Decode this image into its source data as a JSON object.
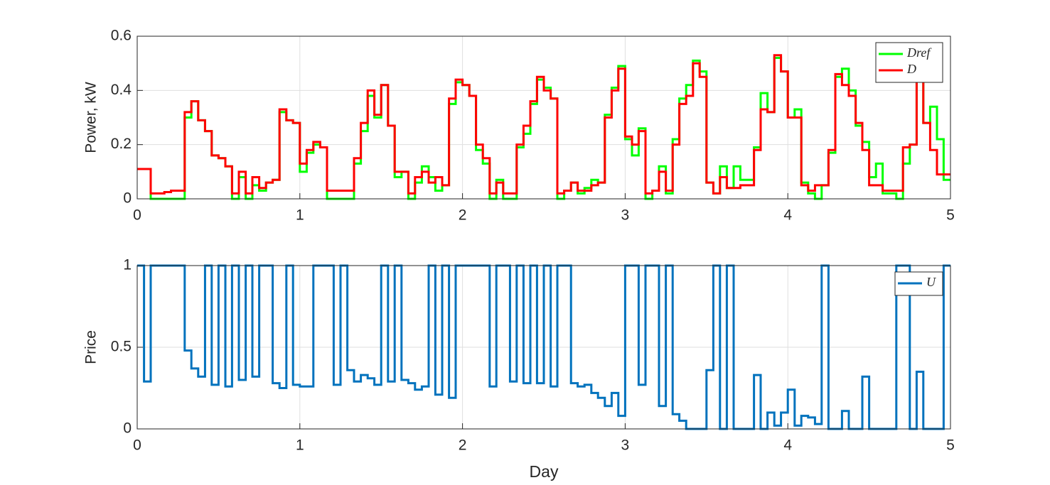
{
  "chart_data": [
    {
      "type": "stairs",
      "ylabel": "Power, kW",
      "xlim": [
        0,
        5
      ],
      "xticks": [
        0,
        1,
        2,
        3,
        4,
        5
      ],
      "ylim": [
        0,
        0.6
      ],
      "yticks": [
        0,
        0.2,
        0.4,
        0.6
      ],
      "grid": true,
      "legend": "northeast",
      "x": [
        0,
        0.042,
        0.083,
        0.125,
        0.167,
        0.208,
        0.25,
        0.292,
        0.333,
        0.375,
        0.417,
        0.458,
        0.5,
        0.542,
        0.583,
        0.625,
        0.667,
        0.708,
        0.75,
        0.792,
        0.833,
        0.875,
        0.917,
        0.958,
        1,
        1.042,
        1.083,
        1.125,
        1.167,
        1.208,
        1.25,
        1.292,
        1.333,
        1.375,
        1.417,
        1.458,
        1.5,
        1.542,
        1.583,
        1.625,
        1.667,
        1.708,
        1.75,
        1.792,
        1.833,
        1.875,
        1.917,
        1.958,
        2,
        2.042,
        2.083,
        2.125,
        2.167,
        2.208,
        2.25,
        2.292,
        2.333,
        2.375,
        2.417,
        2.458,
        2.5,
        2.542,
        2.583,
        2.625,
        2.667,
        2.708,
        2.75,
        2.792,
        2.833,
        2.875,
        2.917,
        2.958,
        3,
        3.042,
        3.083,
        3.125,
        3.167,
        3.208,
        3.25,
        3.292,
        3.333,
        3.375,
        3.417,
        3.458,
        3.5,
        3.542,
        3.583,
        3.625,
        3.667,
        3.708,
        3.75,
        3.792,
        3.833,
        3.875,
        3.917,
        3.958,
        4,
        4.042,
        4.083,
        4.125,
        4.167,
        4.208,
        4.25,
        4.292,
        4.333,
        4.375,
        4.417,
        4.458,
        4.5,
        4.542,
        4.583,
        4.625,
        4.667,
        4.708,
        4.75,
        4.792,
        4.833,
        4.875,
        4.917,
        4.958
      ],
      "series": [
        {
          "name": "Dref",
          "color": "#00ff00",
          "values": [
            0.11,
            0.11,
            0,
            0,
            0,
            0,
            0,
            0.3,
            0.36,
            0.29,
            0.25,
            0.16,
            0.15,
            0.12,
            0,
            0.08,
            0,
            0.05,
            0.03,
            0.06,
            0.07,
            0.32,
            0.29,
            0.28,
            0.1,
            0.17,
            0.2,
            0.19,
            0,
            0,
            0,
            0,
            0.13,
            0.25,
            0.38,
            0.3,
            0.42,
            0.27,
            0.08,
            0.1,
            0,
            0.06,
            0.12,
            0.08,
            0.03,
            0.05,
            0.35,
            0.43,
            0.42,
            0.38,
            0.18,
            0.13,
            0,
            0.07,
            0,
            0,
            0.19,
            0.24,
            0.35,
            0.44,
            0.41,
            0.37,
            0,
            0.03,
            0.06,
            0.02,
            0.04,
            0.07,
            0.06,
            0.31,
            0.41,
            0.49,
            0.22,
            0.16,
            0.26,
            0,
            0.03,
            0.12,
            0.02,
            0.22,
            0.37,
            0.42,
            0.51,
            0.47,
            0.06,
            0.02,
            0.12,
            0.04,
            0.12,
            0.07,
            0.07,
            0.19,
            0.39,
            0.32,
            0.52,
            0.47,
            0.3,
            0.33,
            0.06,
            0.02,
            0,
            0.05,
            0.17,
            0.45,
            0.48,
            0.4,
            0.27,
            0.21,
            0.08,
            0.13,
            0.02,
            0.02,
            0,
            0.13,
            0.2,
            0.57,
            0.28,
            0.34,
            0.22,
            0.07
          ]
        },
        {
          "name": "D",
          "color": "#ff0000",
          "values": [
            0.11,
            0.11,
            0.02,
            0.02,
            0.025,
            0.03,
            0.03,
            0.32,
            0.36,
            0.29,
            0.25,
            0.16,
            0.15,
            0.12,
            0.02,
            0.1,
            0.02,
            0.08,
            0.04,
            0.06,
            0.07,
            0.33,
            0.29,
            0.28,
            0.13,
            0.18,
            0.21,
            0.19,
            0.03,
            0.03,
            0.03,
            0.03,
            0.15,
            0.28,
            0.4,
            0.31,
            0.42,
            0.27,
            0.1,
            0.1,
            0.02,
            0.08,
            0.1,
            0.06,
            0.08,
            0.05,
            0.37,
            0.44,
            0.42,
            0.38,
            0.2,
            0.15,
            0.02,
            0.06,
            0.02,
            0.02,
            0.2,
            0.27,
            0.36,
            0.45,
            0.4,
            0.37,
            0.02,
            0.03,
            0.06,
            0.03,
            0.03,
            0.05,
            0.06,
            0.3,
            0.4,
            0.48,
            0.23,
            0.2,
            0.25,
            0.02,
            0.03,
            0.1,
            0.03,
            0.2,
            0.35,
            0.38,
            0.5,
            0.45,
            0.06,
            0.02,
            0.08,
            0.04,
            0.04,
            0.05,
            0.05,
            0.18,
            0.33,
            0.32,
            0.53,
            0.47,
            0.3,
            0.3,
            0.05,
            0.03,
            0.05,
            0.05,
            0.18,
            0.46,
            0.42,
            0.38,
            0.28,
            0.18,
            0.05,
            0.05,
            0.03,
            0.03,
            0.03,
            0.19,
            0.2,
            0.56,
            0.28,
            0.18,
            0.09,
            0.09
          ]
        }
      ]
    },
    {
      "type": "stairs",
      "xlabel": "Day",
      "ylabel": "Price",
      "xlim": [
        0,
        5
      ],
      "xticks": [
        0,
        1,
        2,
        3,
        4,
        5
      ],
      "ylim": [
        0,
        1
      ],
      "yticks": [
        0,
        0.5,
        1
      ],
      "grid": true,
      "legend": "northeast",
      "x": [
        0,
        0.042,
        0.083,
        0.125,
        0.167,
        0.208,
        0.25,
        0.292,
        0.333,
        0.375,
        0.417,
        0.458,
        0.5,
        0.542,
        0.583,
        0.625,
        0.667,
        0.708,
        0.75,
        0.792,
        0.833,
        0.875,
        0.917,
        0.958,
        1,
        1.042,
        1.083,
        1.125,
        1.167,
        1.208,
        1.25,
        1.292,
        1.333,
        1.375,
        1.417,
        1.458,
        1.5,
        1.542,
        1.583,
        1.625,
        1.667,
        1.708,
        1.75,
        1.792,
        1.833,
        1.875,
        1.917,
        1.958,
        2,
        2.042,
        2.083,
        2.125,
        2.167,
        2.208,
        2.25,
        2.292,
        2.333,
        2.375,
        2.417,
        2.458,
        2.5,
        2.542,
        2.583,
        2.625,
        2.667,
        2.708,
        2.75,
        2.792,
        2.833,
        2.875,
        2.917,
        2.958,
        3,
        3.042,
        3.083,
        3.125,
        3.167,
        3.208,
        3.25,
        3.292,
        3.333,
        3.375,
        3.417,
        3.458,
        3.5,
        3.542,
        3.583,
        3.625,
        3.667,
        3.708,
        3.75,
        3.792,
        3.833,
        3.875,
        3.917,
        3.958,
        4,
        4.042,
        4.083,
        4.125,
        4.167,
        4.208,
        4.25,
        4.292,
        4.333,
        4.375,
        4.417,
        4.458,
        4.5,
        4.542,
        4.583,
        4.625,
        4.667,
        4.708,
        4.75,
        4.792,
        4.833,
        4.875,
        4.917,
        4.958
      ],
      "series": [
        {
          "name": "U",
          "color": "#0072bd",
          "values": [
            1,
            0.29,
            1,
            1,
            1,
            1,
            1,
            0.48,
            0.37,
            0.32,
            1,
            0.27,
            1,
            0.26,
            1,
            0.3,
            1,
            0.32,
            1,
            1,
            0.28,
            0.25,
            1,
            0.27,
            0.26,
            0.26,
            1,
            1,
            1,
            0.27,
            1,
            0.36,
            0.29,
            0.33,
            0.31,
            0.27,
            1,
            0.29,
            1,
            0.3,
            0.28,
            0.24,
            0.26,
            1,
            0.21,
            1,
            0.19,
            1,
            1,
            1,
            1,
            1,
            0.26,
            1,
            1,
            0.29,
            1,
            0.28,
            1,
            0.28,
            1,
            0.26,
            1,
            1,
            0.28,
            0.26,
            0.27,
            0.22,
            0.19,
            0.14,
            0.22,
            0.08,
            1,
            1,
            0.27,
            1,
            1,
            0.14,
            1,
            0.09,
            0.05,
            0,
            0,
            0,
            0.36,
            1,
            0,
            1,
            0,
            0,
            0,
            0.33,
            0,
            0.1,
            0.02,
            0.1,
            0.24,
            0.02,
            0.08,
            0.07,
            0.03,
            1,
            0,
            0,
            0.11,
            0,
            0,
            0.32,
            0,
            0,
            0,
            0,
            1,
            1,
            0,
            0.35,
            0,
            0,
            0,
            1
          ]
        }
      ]
    }
  ]
}
